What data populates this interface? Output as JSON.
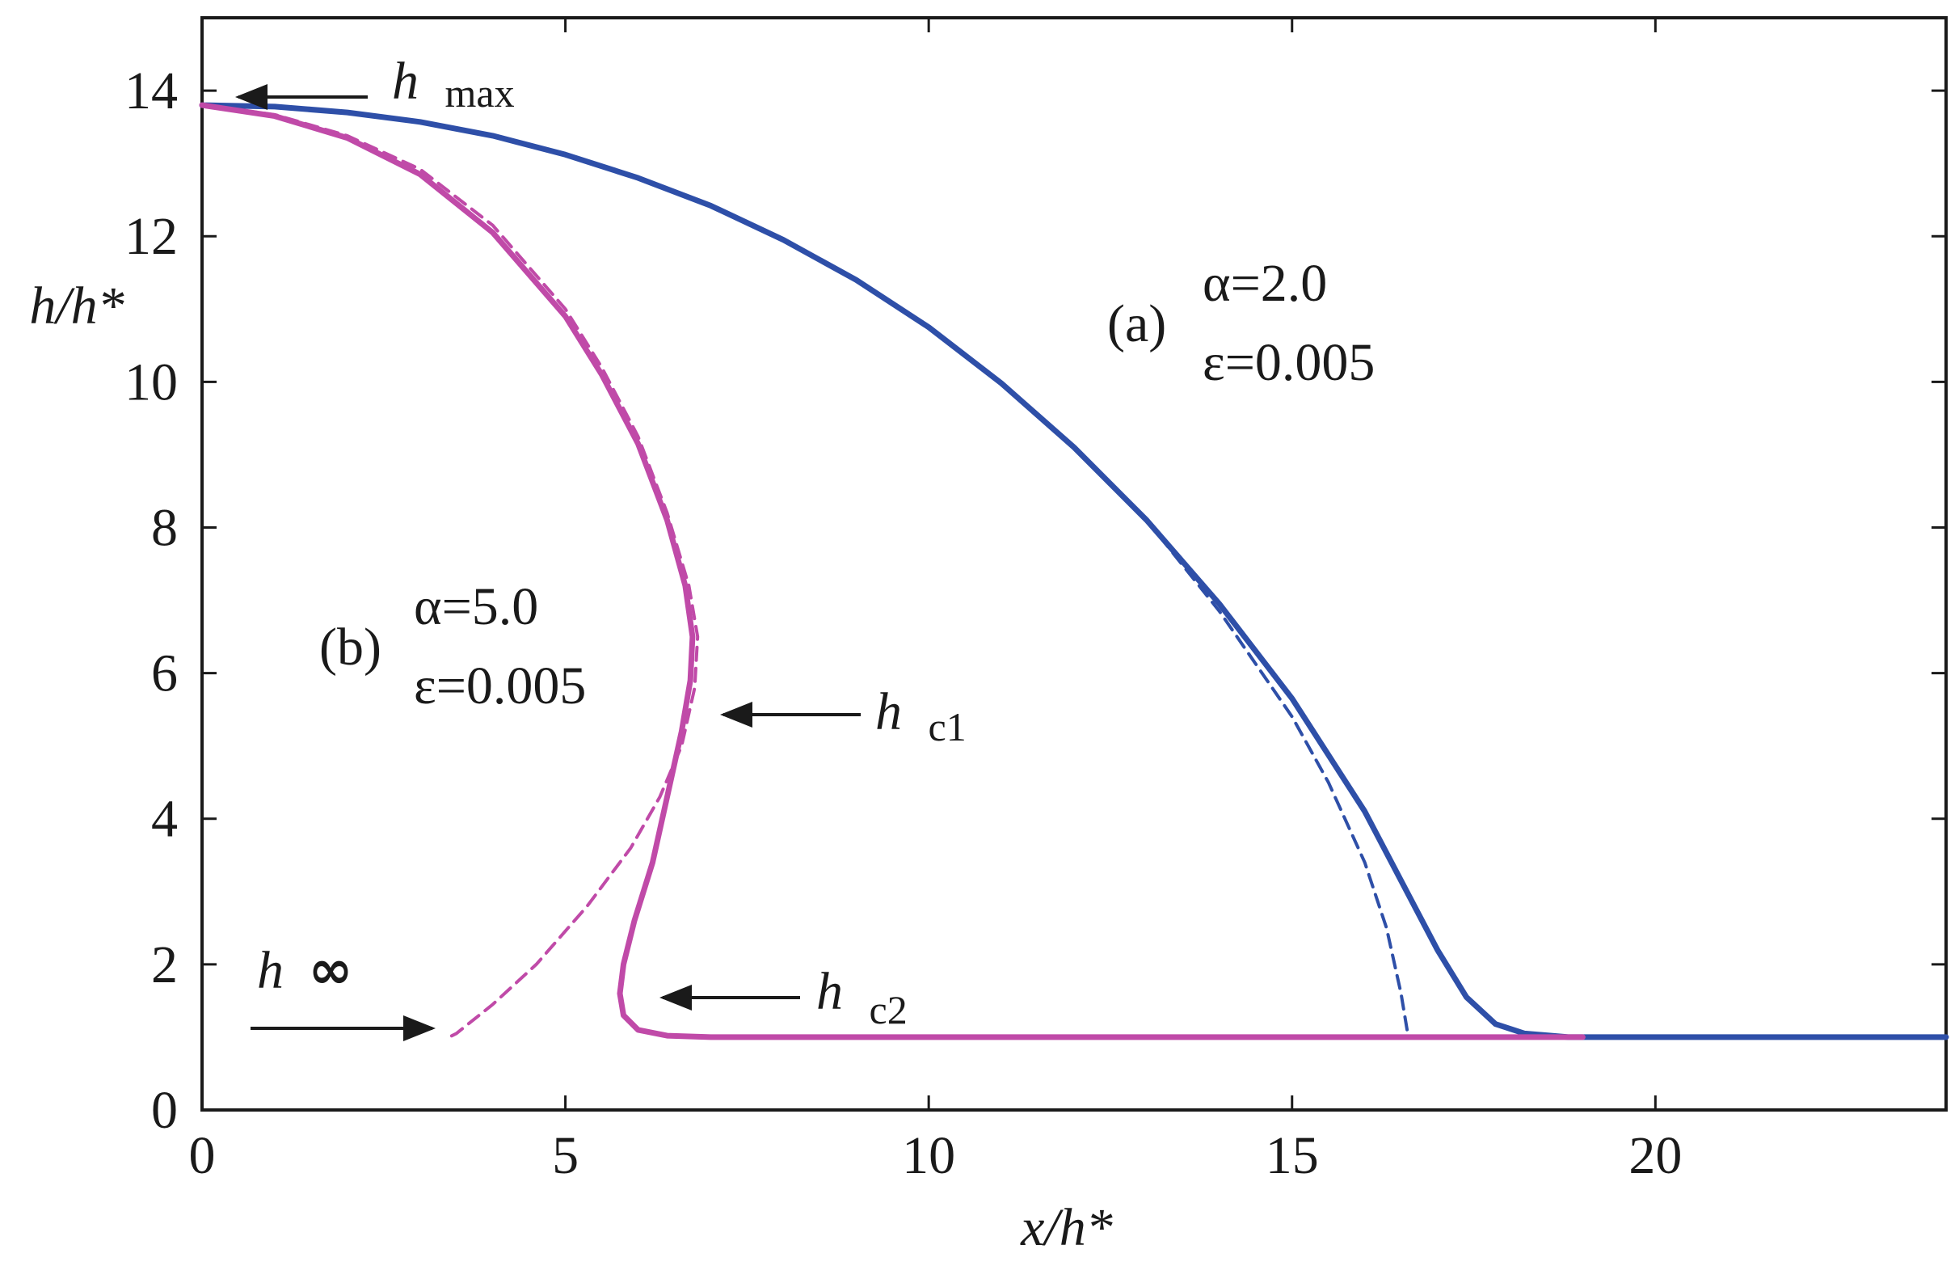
{
  "chart_data": {
    "type": "line",
    "xlabel": "x/h*",
    "ylabel": "h/h*",
    "xlim": [
      0,
      24
    ],
    "ylim": [
      0,
      15
    ],
    "xticks": [
      0,
      5,
      10,
      15,
      20
    ],
    "yticks": [
      0,
      2,
      4,
      6,
      8,
      10,
      12,
      14
    ],
    "grid": false,
    "colors": {
      "a": "#2e4fa8",
      "b": "#c04aa8",
      "text": "#1a1a1a"
    },
    "series": [
      {
        "id": "a_solid",
        "color": "#2e4fa8",
        "style": "solid",
        "points": [
          [
            0,
            13.8
          ],
          [
            1,
            13.78
          ],
          [
            2,
            13.7
          ],
          [
            3,
            13.57
          ],
          [
            4,
            13.38
          ],
          [
            5,
            13.12
          ],
          [
            6,
            12.8
          ],
          [
            7,
            12.42
          ],
          [
            8,
            11.95
          ],
          [
            9,
            11.4
          ],
          [
            10,
            10.75
          ],
          [
            11,
            9.98
          ],
          [
            12,
            9.1
          ],
          [
            13,
            8.1
          ],
          [
            14,
            6.95
          ],
          [
            15,
            5.65
          ],
          [
            16,
            4.1
          ],
          [
            16.5,
            3.15
          ],
          [
            17,
            2.2
          ],
          [
            17.4,
            1.55
          ],
          [
            17.8,
            1.18
          ],
          [
            18.2,
            1.05
          ],
          [
            18.8,
            1.0
          ],
          [
            20,
            1.0
          ],
          [
            24,
            1.0
          ]
        ]
      },
      {
        "id": "a_dashed",
        "color": "#2e4fa8",
        "style": "dashed",
        "points": [
          [
            13,
            8.1
          ],
          [
            14,
            6.85
          ],
          [
            15,
            5.4
          ],
          [
            15.5,
            4.5
          ],
          [
            16,
            3.4
          ],
          [
            16.3,
            2.5
          ],
          [
            16.5,
            1.6
          ],
          [
            16.6,
            1.0
          ]
        ]
      },
      {
        "id": "b_solid",
        "color": "#c04aa8",
        "style": "solid",
        "points": [
          [
            0,
            13.8
          ],
          [
            1,
            13.65
          ],
          [
            2,
            13.35
          ],
          [
            3,
            12.85
          ],
          [
            4,
            12.05
          ],
          [
            5,
            10.9
          ],
          [
            5.5,
            10.1
          ],
          [
            6,
            9.15
          ],
          [
            6.4,
            8.1
          ],
          [
            6.65,
            7.2
          ],
          [
            6.75,
            6.5
          ],
          [
            6.72,
            5.9
          ],
          [
            6.6,
            5.2
          ],
          [
            6.4,
            4.3
          ],
          [
            6.2,
            3.4
          ],
          [
            5.95,
            2.6
          ],
          [
            5.8,
            2.0
          ],
          [
            5.75,
            1.6
          ],
          [
            5.8,
            1.3
          ],
          [
            6.0,
            1.1
          ],
          [
            6.4,
            1.02
          ],
          [
            7,
            1.0
          ],
          [
            10,
            1.0
          ],
          [
            15,
            1.0
          ],
          [
            19,
            1.0
          ]
        ]
      },
      {
        "id": "b_dashed",
        "color": "#c04aa8",
        "style": "dashed",
        "points": [
          [
            0,
            13.8
          ],
          [
            1,
            13.67
          ],
          [
            2,
            13.38
          ],
          [
            3,
            12.92
          ],
          [
            4,
            12.15
          ],
          [
            5,
            11.0
          ],
          [
            5.5,
            10.2
          ],
          [
            6,
            9.25
          ],
          [
            6.4,
            8.2
          ],
          [
            6.7,
            7.2
          ],
          [
            6.82,
            6.5
          ],
          [
            6.78,
            5.8
          ],
          [
            6.6,
            5.0
          ],
          [
            6.3,
            4.3
          ],
          [
            5.9,
            3.6
          ],
          [
            5.3,
            2.8
          ],
          [
            4.6,
            2.0
          ],
          [
            4.0,
            1.45
          ],
          [
            3.5,
            1.05
          ],
          [
            3.4,
            1.0
          ]
        ]
      }
    ]
  },
  "annotations": {
    "hmax": {
      "h": "h",
      "sub": "max"
    },
    "hc1": {
      "h": "h",
      "sub": "c1"
    },
    "hc2": {
      "h": "h",
      "sub": "c2"
    },
    "hinf": {
      "h": "h",
      "sym": "∞"
    },
    "a_tag": "(a)",
    "a_alpha": "α=2.0",
    "a_eps": "ε=0.005",
    "b_tag": "(b)",
    "b_alpha": "α=5.0",
    "b_eps": "ε=0.005"
  }
}
